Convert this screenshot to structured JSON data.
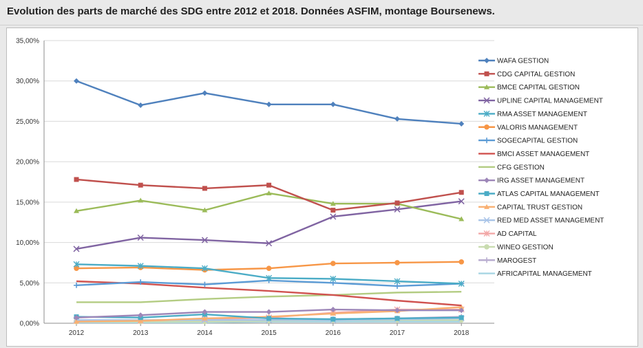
{
  "title": "Evolution des parts de marché des SDG entre 2012 et 2018. Données ASFIM, montage Boursenews.",
  "chart_data": {
    "type": "line",
    "title": "",
    "xlabel": "",
    "ylabel": "",
    "x": [
      "2012",
      "2013",
      "2014",
      "2015",
      "2016",
      "2017",
      "2018"
    ],
    "ylim": [
      0,
      35
    ],
    "y_ticks": [
      0,
      5,
      10,
      15,
      20,
      25,
      30,
      35
    ],
    "y_tick_labels": [
      "0,00%",
      "5,00%",
      "10,00%",
      "15,00%",
      "20,00%",
      "25,00%",
      "30,00%",
      "35,00%"
    ],
    "grid": "horizontal",
    "legend_position": "right",
    "series": [
      {
        "name": "WAFA GESTION",
        "color": "#4f81bd",
        "marker": "diamond",
        "values": [
          30.0,
          27.0,
          28.5,
          27.1,
          27.1,
          25.3,
          24.7
        ]
      },
      {
        "name": "CDG CAPITAL GESTION",
        "color": "#c0504d",
        "marker": "square",
        "values": [
          17.8,
          17.1,
          16.7,
          17.1,
          14.0,
          14.9,
          16.2
        ]
      },
      {
        "name": "BMCE CAPITAL GESTION",
        "color": "#9bbb59",
        "marker": "triangle",
        "values": [
          13.9,
          15.2,
          14.0,
          16.1,
          14.8,
          14.8,
          12.9
        ]
      },
      {
        "name": "UPLINE CAPITAL MANAGEMENT",
        "color": "#8064a2",
        "marker": "x",
        "values": [
          9.2,
          10.6,
          10.3,
          9.9,
          13.2,
          14.1,
          15.1
        ]
      },
      {
        "name": "RMA ASSET MANAGEMENT",
        "color": "#4bacc6",
        "marker": "asterisk",
        "values": [
          7.3,
          7.1,
          6.8,
          5.6,
          5.5,
          5.2,
          4.9
        ]
      },
      {
        "name": "VALORIS MANAGEMENT",
        "color": "#f79646",
        "marker": "circle",
        "values": [
          6.8,
          6.9,
          6.6,
          6.8,
          7.4,
          7.5,
          7.6
        ]
      },
      {
        "name": "SOGECAPITAL GESTION",
        "color": "#5b9bd5",
        "marker": "plus",
        "values": [
          4.7,
          5.1,
          4.8,
          5.3,
          5.0,
          4.6,
          4.9
        ]
      },
      {
        "name": "BMCI ASSET MANAGEMENT",
        "color": "#d0524f",
        "marker": "none",
        "values": [
          5.2,
          4.9,
          4.4,
          4.0,
          3.5,
          2.8,
          2.2
        ]
      },
      {
        "name": "CFG GESTION",
        "color": "#b3cc82",
        "marker": "none",
        "values": [
          2.6,
          2.6,
          3.0,
          3.3,
          3.5,
          3.8,
          3.9
        ]
      },
      {
        "name": "IRG ASSET MANAGEMENT",
        "color": "#9d86b8",
        "marker": "diamond",
        "values": [
          0.7,
          1.0,
          1.4,
          1.4,
          1.7,
          1.6,
          1.6
        ]
      },
      {
        "name": "ATLAS CAPITAL MANAGEMENT",
        "color": "#4bacc6",
        "marker": "square",
        "values": [
          0.8,
          0.7,
          1.1,
          0.6,
          0.5,
          0.6,
          0.7
        ]
      },
      {
        "name": "CAPITAL TRUST GESTION",
        "color": "#f9b072",
        "marker": "triangle",
        "values": [
          0.2,
          0.3,
          0.6,
          0.8,
          1.2,
          1.5,
          2.0
        ]
      },
      {
        "name": "RED MED ASSET MANAGEMENT",
        "color": "#a9c4e8",
        "marker": "x",
        "values": [
          0.4,
          0.4,
          0.4,
          0.4,
          0.4,
          0.5,
          0.6
        ]
      },
      {
        "name": "AD CAPITAL",
        "color": "#f2a7a6",
        "marker": "asterisk",
        "values": [
          0.3,
          0.3,
          0.5,
          0.7,
          1.3,
          1.7,
          1.7
        ]
      },
      {
        "name": "WINEO GESTION",
        "color": "#c9dcb0",
        "marker": "circle",
        "values": [
          0.2,
          0.2,
          0.2,
          0.3,
          0.4,
          0.4,
          0.4
        ]
      },
      {
        "name": "MAROGEST",
        "color": "#b9add0",
        "marker": "plus",
        "values": [
          0.3,
          0.3,
          0.3,
          0.4,
          0.5,
          0.6,
          0.8
        ]
      },
      {
        "name": "AFRICAPITAL MANAGEMENT",
        "color": "#a6d5e3",
        "marker": "none",
        "values": [
          0.1,
          0.1,
          0.1,
          0.2,
          0.2,
          0.2,
          0.2
        ]
      }
    ]
  }
}
